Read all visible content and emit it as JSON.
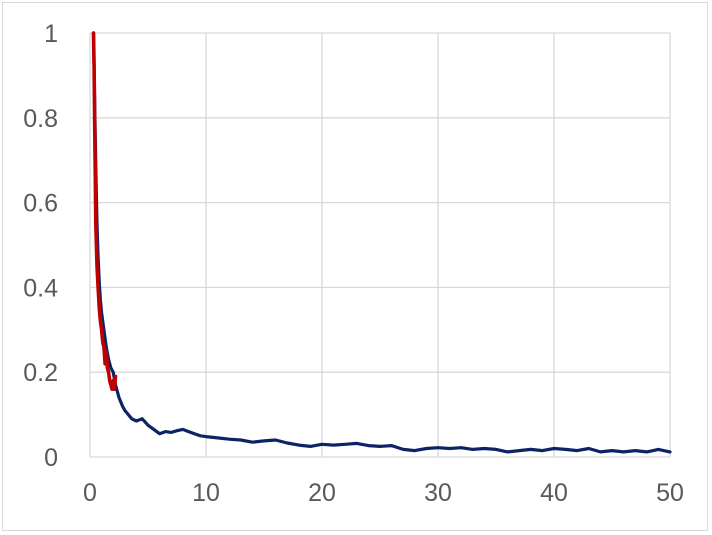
{
  "chart_data": {
    "type": "line",
    "title": "",
    "xlabel": "",
    "ylabel": "",
    "xlim": [
      0,
      50
    ],
    "ylim": [
      0,
      1
    ],
    "x_ticks": [
      0,
      10,
      20,
      30,
      40,
      50
    ],
    "y_ticks": [
      0,
      0.2,
      0.4,
      0.6,
      0.8,
      1
    ],
    "y_tick_labels": [
      "0",
      "0.2",
      "0.4",
      "0.6",
      "0.8",
      "1"
    ],
    "grid": true,
    "legend": "none",
    "series": [
      {
        "color": "#0a2466",
        "x": [
          0.3,
          0.4,
          0.5,
          0.6,
          0.7,
          0.8,
          0.9,
          1.0,
          1.2,
          1.4,
          1.6,
          1.8,
          2.0,
          2.2,
          2.5,
          2.8,
          3.0,
          3.3,
          3.6,
          4.0,
          4.5,
          5.0,
          5.5,
          6.0,
          6.5,
          7.0,
          7.5,
          8.0,
          8.5,
          9.0,
          9.5,
          10.0,
          11.0,
          12.0,
          13.0,
          14.0,
          15.0,
          16.0,
          17.0,
          18.0,
          19.0,
          20.0,
          21.0,
          22.0,
          23.0,
          24.0,
          25.0,
          26.0,
          27.0,
          28.0,
          29.0,
          30.0,
          31.0,
          32.0,
          33.0,
          34.0,
          35.0,
          36.0,
          37.0,
          38.0,
          39.0,
          40.0,
          41.0,
          42.0,
          43.0,
          44.0,
          45.0,
          46.0,
          47.0,
          48.0,
          49.0,
          50.0
        ],
        "y": [
          1.0,
          0.85,
          0.68,
          0.55,
          0.47,
          0.41,
          0.37,
          0.34,
          0.3,
          0.26,
          0.23,
          0.21,
          0.2,
          0.17,
          0.14,
          0.12,
          0.11,
          0.1,
          0.09,
          0.085,
          0.09,
          0.075,
          0.065,
          0.055,
          0.06,
          0.058,
          0.062,
          0.065,
          0.06,
          0.055,
          0.05,
          0.048,
          0.045,
          0.042,
          0.04,
          0.035,
          0.038,
          0.04,
          0.033,
          0.028,
          0.025,
          0.03,
          0.028,
          0.03,
          0.032,
          0.027,
          0.025,
          0.027,
          0.018,
          0.015,
          0.02,
          0.022,
          0.02,
          0.022,
          0.018,
          0.02,
          0.018,
          0.012,
          0.015,
          0.018,
          0.015,
          0.02,
          0.018,
          0.015,
          0.02,
          0.012,
          0.015,
          0.012,
          0.015,
          0.012,
          0.018,
          0.012
        ]
      },
      {
        "color": "#c00000",
        "x": [
          0.3,
          0.35,
          0.4,
          0.45,
          0.5,
          0.55,
          0.6,
          0.7,
          0.8,
          0.9,
          1.0,
          1.1,
          1.2,
          1.3,
          1.4,
          1.5,
          1.6,
          1.7,
          1.8,
          1.9,
          2.0,
          2.1,
          2.2
        ],
        "y": [
          1.0,
          0.92,
          0.8,
          0.68,
          0.55,
          0.5,
          0.45,
          0.4,
          0.35,
          0.32,
          0.3,
          0.27,
          0.26,
          0.22,
          0.25,
          0.21,
          0.2,
          0.18,
          0.17,
          0.16,
          0.18,
          0.16,
          0.19
        ]
      }
    ]
  }
}
